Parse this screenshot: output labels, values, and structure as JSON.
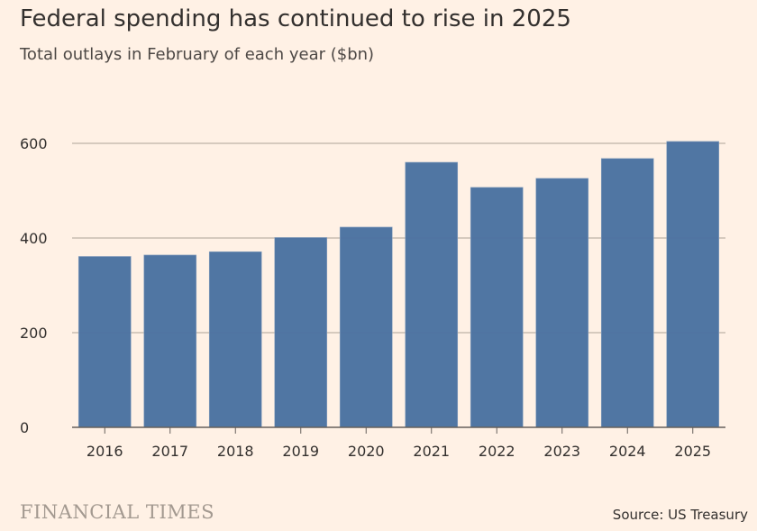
{
  "chart_data": {
    "type": "bar",
    "title": "Federal spending has continued to rise in 2025",
    "subtitle": "Total outlays in February of each year ($bn)",
    "categories": [
      "2016",
      "2017",
      "2018",
      "2019",
      "2020",
      "2021",
      "2022",
      "2023",
      "2024",
      "2025"
    ],
    "values": [
      361,
      364,
      371,
      401,
      423,
      560,
      507,
      526,
      568,
      604
    ],
    "ylim": [
      0,
      600
    ],
    "yticks": [
      0,
      200,
      400,
      600
    ],
    "grid": true,
    "bar_color": "#4a72a0",
    "source": "Source: US Treasury"
  },
  "branding": {
    "logo": "FINANCIAL TIMES"
  }
}
